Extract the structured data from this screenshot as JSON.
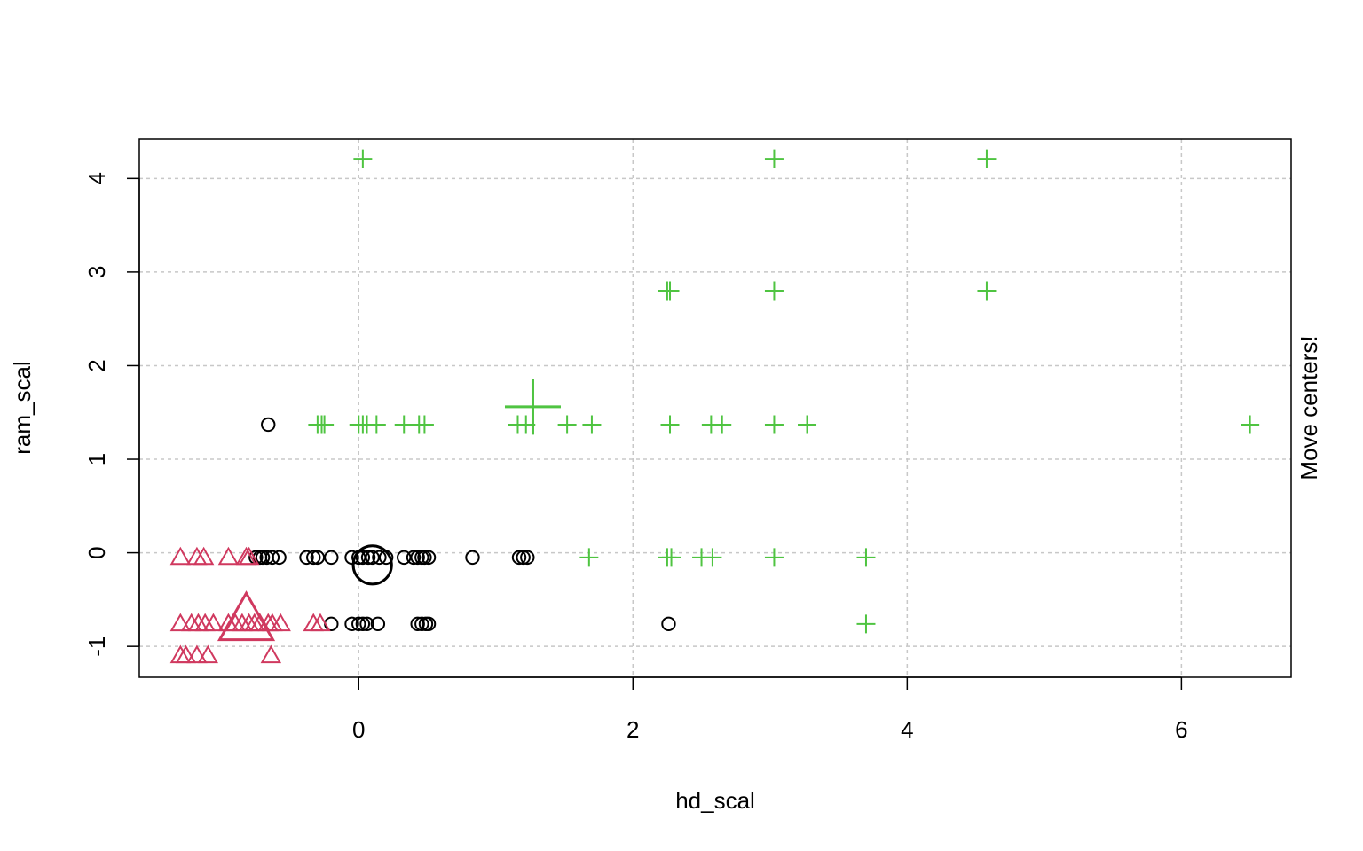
{
  "chart_data": {
    "type": "scatter",
    "title": "",
    "xlabel": "hd_scal",
    "ylabel": "ram_scal",
    "side_label": "Move centers!",
    "xlim": [
      -1.6,
      6.8
    ],
    "ylim": [
      -1.33,
      4.42
    ],
    "x_ticks": [
      0,
      2,
      4,
      6
    ],
    "y_ticks": [
      -1,
      0,
      1,
      2,
      3,
      4
    ],
    "grid": true,
    "series": [
      {
        "marker": "circle",
        "color": "#000000",
        "points": [
          [
            -0.66,
            1.37
          ],
          [
            -0.75,
            -0.05
          ],
          [
            -0.72,
            -0.05
          ],
          [
            -0.7,
            -0.05
          ],
          [
            -0.67,
            -0.05
          ],
          [
            -0.63,
            -0.05
          ],
          [
            -0.58,
            -0.05
          ],
          [
            -0.38,
            -0.05
          ],
          [
            -0.33,
            -0.05
          ],
          [
            -0.3,
            -0.05
          ],
          [
            -0.2,
            -0.05
          ],
          [
            -0.05,
            -0.05
          ],
          [
            0.0,
            -0.05
          ],
          [
            0.03,
            -0.05
          ],
          [
            0.07,
            -0.05
          ],
          [
            0.1,
            -0.05
          ],
          [
            0.15,
            -0.05
          ],
          [
            0.2,
            -0.05
          ],
          [
            0.33,
            -0.05
          ],
          [
            0.4,
            -0.05
          ],
          [
            0.43,
            -0.05
          ],
          [
            0.46,
            -0.05
          ],
          [
            0.48,
            -0.05
          ],
          [
            0.51,
            -0.05
          ],
          [
            0.83,
            -0.05
          ],
          [
            1.17,
            -0.05
          ],
          [
            1.2,
            -0.05
          ],
          [
            1.23,
            -0.05
          ],
          [
            -0.2,
            -0.76
          ],
          [
            -0.05,
            -0.76
          ],
          [
            0.0,
            -0.76
          ],
          [
            0.03,
            -0.76
          ],
          [
            0.06,
            -0.76
          ],
          [
            0.14,
            -0.76
          ],
          [
            0.43,
            -0.76
          ],
          [
            0.46,
            -0.76
          ],
          [
            0.49,
            -0.76
          ],
          [
            0.51,
            -0.76
          ],
          [
            2.26,
            -0.76
          ]
        ],
        "center": [
          0.1,
          -0.13
        ]
      },
      {
        "marker": "triangle",
        "color": "#d0395f",
        "points": [
          [
            -1.3,
            -0.05
          ],
          [
            -1.18,
            -0.05
          ],
          [
            -1.13,
            -0.05
          ],
          [
            -0.95,
            -0.05
          ],
          [
            -0.82,
            -0.05
          ],
          [
            -0.8,
            -0.05
          ],
          [
            -1.3,
            -0.76
          ],
          [
            -1.22,
            -0.76
          ],
          [
            -1.17,
            -0.76
          ],
          [
            -1.12,
            -0.76
          ],
          [
            -1.06,
            -0.76
          ],
          [
            -0.95,
            -0.76
          ],
          [
            -0.9,
            -0.76
          ],
          [
            -0.85,
            -0.76
          ],
          [
            -0.8,
            -0.76
          ],
          [
            -0.76,
            -0.76
          ],
          [
            -0.72,
            -0.76
          ],
          [
            -0.66,
            -0.76
          ],
          [
            -0.63,
            -0.76
          ],
          [
            -0.57,
            -0.76
          ],
          [
            -0.33,
            -0.76
          ],
          [
            -0.28,
            -0.76
          ],
          [
            -1.3,
            -1.1
          ],
          [
            -1.26,
            -1.1
          ],
          [
            -1.18,
            -1.1
          ],
          [
            -1.1,
            -1.1
          ],
          [
            -0.64,
            -1.1
          ]
        ],
        "center": [
          -0.82,
          -0.72
        ]
      },
      {
        "marker": "plus",
        "color": "#4fc441",
        "points": [
          [
            0.03,
            4.21
          ],
          [
            3.03,
            4.21
          ],
          [
            4.58,
            4.21
          ],
          [
            2.25,
            2.8
          ],
          [
            2.27,
            2.8
          ],
          [
            3.03,
            2.8
          ],
          [
            4.58,
            2.8
          ],
          [
            -0.3,
            1.37
          ],
          [
            -0.27,
            1.37
          ],
          [
            -0.25,
            1.37
          ],
          [
            0.0,
            1.37
          ],
          [
            0.03,
            1.37
          ],
          [
            0.06,
            1.37
          ],
          [
            0.13,
            1.37
          ],
          [
            0.33,
            1.37
          ],
          [
            0.44,
            1.37
          ],
          [
            0.48,
            1.37
          ],
          [
            1.16,
            1.37
          ],
          [
            1.22,
            1.37
          ],
          [
            1.52,
            1.37
          ],
          [
            1.7,
            1.37
          ],
          [
            2.27,
            1.37
          ],
          [
            2.57,
            1.37
          ],
          [
            2.65,
            1.37
          ],
          [
            3.03,
            1.37
          ],
          [
            3.27,
            1.37
          ],
          [
            6.5,
            1.37
          ],
          [
            1.68,
            -0.05
          ],
          [
            2.25,
            -0.05
          ],
          [
            2.28,
            -0.05
          ],
          [
            2.5,
            -0.05
          ],
          [
            2.58,
            -0.05
          ],
          [
            3.03,
            -0.05
          ],
          [
            3.7,
            -0.05
          ],
          [
            3.7,
            -0.76
          ]
        ],
        "center": [
          1.27,
          1.56
        ]
      }
    ]
  }
}
